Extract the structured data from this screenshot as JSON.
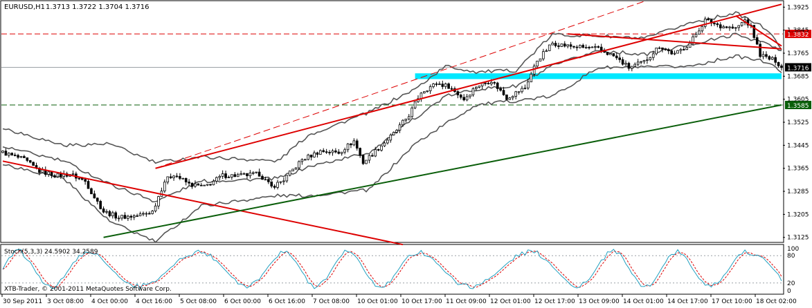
{
  "header": {
    "symbol": "EURUSD,H1",
    "ohlc": "1.3713 1.3722 1.3704 1.3716"
  },
  "indicator": {
    "label": "Stoch(5,3,3) 24.5902 34.2589",
    "levels": [
      "100",
      "80",
      "20",
      "0"
    ]
  },
  "footer": {
    "copyright": "XTB-Trader, © 2001-2011 MetaQuotes Software Corp."
  },
  "colors": {
    "background": "#ffffff",
    "candle": "#000000",
    "bands": "#555555",
    "trend_red": "#dd0000",
    "trend_green": "#0a5e0a",
    "zone": "#00e8ff",
    "stoch_main": "#20a0c0",
    "stoch_signal": "#dd0000",
    "label_red": "#dd0000",
    "label_green": "#0a5e0a",
    "label_current": "#000000"
  },
  "chart_data": {
    "type": "candlestick",
    "title": "EURUSD,H1",
    "y_ticks": [
      "1.3925",
      "1.3845",
      "1.3765",
      "1.3685",
      "1.3605",
      "1.3525",
      "1.3445",
      "1.3365",
      "1.3285",
      "1.3205",
      "1.3125"
    ],
    "ylim": [
      1.311,
      1.3945
    ],
    "x_ticks": [
      "30 Sep 2011",
      "3 Oct 08:00",
      "4 Oct 00:00",
      "4 Oct 16:00",
      "5 Oct 08:00",
      "6 Oct 00:00",
      "6 Oct 16:00",
      "7 Oct 08:00",
      "10 Oct 01:00",
      "10 Oct 17:00",
      "11 Oct 09:00",
      "12 Oct 01:00",
      "12 Oct 17:00",
      "13 Oct 09:00",
      "14 Oct 01:00",
      "14 Oct 17:00",
      "17 Oct 10:00",
      "18 Oct 02:00"
    ],
    "x_count": 256,
    "close_points": [
      [
        0,
        1.342
      ],
      [
        7,
        1.3395
      ],
      [
        12,
        1.3355
      ],
      [
        18,
        1.334
      ],
      [
        22,
        1.3345
      ],
      [
        27,
        1.332
      ],
      [
        30,
        1.3265
      ],
      [
        33,
        1.3215
      ],
      [
        38,
        1.3195
      ],
      [
        44,
        1.32
      ],
      [
        49,
        1.3215
      ],
      [
        53,
        1.332
      ],
      [
        56,
        1.3345
      ],
      [
        61,
        1.331
      ],
      [
        66,
        1.33
      ],
      [
        72,
        1.334
      ],
      [
        78,
        1.334
      ],
      [
        84,
        1.3345
      ],
      [
        88,
        1.33
      ],
      [
        92,
        1.3325
      ],
      [
        98,
        1.3395
      ],
      [
        104,
        1.3425
      ],
      [
        110,
        1.342
      ],
      [
        115,
        1.346
      ],
      [
        118,
        1.3385
      ],
      [
        123,
        1.3435
      ],
      [
        128,
        1.3485
      ],
      [
        133,
        1.355
      ],
      [
        137,
        1.363
      ],
      [
        142,
        1.366
      ],
      [
        146,
        1.365
      ],
      [
        151,
        1.3605
      ],
      [
        155,
        1.365
      ],
      [
        160,
        1.367
      ],
      [
        165,
        1.361
      ],
      [
        171,
        1.3645
      ],
      [
        175,
        1.374
      ],
      [
        180,
        1.38
      ],
      [
        185,
        1.379
      ],
      [
        190,
        1.3785
      ],
      [
        195,
        1.378
      ],
      [
        200,
        1.3755
      ],
      [
        205,
        1.3715
      ],
      [
        210,
        1.3735
      ],
      [
        215,
        1.379
      ],
      [
        220,
        1.376
      ],
      [
        225,
        1.38
      ],
      [
        230,
        1.388
      ],
      [
        235,
        1.386
      ],
      [
        240,
        1.385
      ],
      [
        243,
        1.388
      ],
      [
        245,
        1.3855
      ],
      [
        248,
        1.376
      ],
      [
        251,
        1.3745
      ],
      [
        253,
        1.374
      ],
      [
        255,
        1.3716
      ]
    ],
    "bollinger": {
      "upper": [
        [
          0,
          1.3505
        ],
        [
          20,
          1.3445
        ],
        [
          35,
          1.345
        ],
        [
          50,
          1.3385
        ],
        [
          65,
          1.3405
        ],
        [
          90,
          1.339
        ],
        [
          100,
          1.348
        ],
        [
          120,
          1.356
        ],
        [
          135,
          1.364
        ],
        [
          145,
          1.372
        ],
        [
          155,
          1.37
        ],
        [
          168,
          1.3705
        ],
        [
          180,
          1.383
        ],
        [
          195,
          1.3825
        ],
        [
          210,
          1.3815
        ],
        [
          225,
          1.387
        ],
        [
          240,
          1.3905
        ],
        [
          250,
          1.385
        ],
        [
          255,
          1.378
        ]
      ],
      "middle": [
        [
          0,
          1.344
        ],
        [
          20,
          1.339
        ],
        [
          35,
          1.331
        ],
        [
          50,
          1.325
        ],
        [
          65,
          1.332
        ],
        [
          90,
          1.333
        ],
        [
          100,
          1.337
        ],
        [
          120,
          1.342
        ],
        [
          135,
          1.354
        ],
        [
          145,
          1.3615
        ],
        [
          155,
          1.364
        ],
        [
          168,
          1.365
        ],
        [
          180,
          1.372
        ],
        [
          195,
          1.3775
        ],
        [
          210,
          1.376
        ],
        [
          225,
          1.3795
        ],
        [
          240,
          1.383
        ],
        [
          250,
          1.38
        ],
        [
          255,
          1.377
        ]
      ],
      "lower": [
        [
          0,
          1.338
        ],
        [
          20,
          1.333
        ],
        [
          35,
          1.318
        ],
        [
          50,
          1.311
        ],
        [
          65,
          1.3235
        ],
        [
          90,
          1.327
        ],
        [
          100,
          1.327
        ],
        [
          120,
          1.329
        ],
        [
          135,
          1.345
        ],
        [
          145,
          1.352
        ],
        [
          155,
          1.3585
        ],
        [
          168,
          1.36
        ],
        [
          180,
          1.3615
        ],
        [
          195,
          1.3715
        ],
        [
          210,
          1.3715
        ],
        [
          225,
          1.372
        ],
        [
          240,
          1.3755
        ],
        [
          250,
          1.3735
        ],
        [
          255,
          1.37
        ]
      ]
    },
    "trend_lines": [
      {
        "color": "trend_red",
        "style": "solid",
        "from": [
          0,
          1.339
        ],
        "to": [
          131,
          1.31
        ]
      },
      {
        "color": "trend_red",
        "style": "solid",
        "from": [
          50,
          1.3365
        ],
        "to": [
          255,
          1.3935
        ]
      },
      {
        "color": "trend_red",
        "style": "dashed",
        "from": [
          50,
          1.3365
        ],
        "to": [
          210,
          1.3945
        ]
      },
      {
        "color": "trend_green",
        "style": "solid",
        "from": [
          33,
          1.3125
        ],
        "to": [
          255,
          1.3585
        ]
      },
      {
        "color": "trend_red",
        "style": "solid",
        "from": [
          185,
          1.3832
        ],
        "to": [
          255,
          1.378
        ]
      },
      {
        "color": "trend_red",
        "style": "solid",
        "from": [
          240,
          1.3895
        ],
        "to": [
          255,
          1.379
        ]
      }
    ],
    "horizontal_lines": [
      {
        "value": 1.3832,
        "label": "1.3832",
        "color": "label_red",
        "style": "dashed"
      },
      {
        "value": 1.3585,
        "label": "1.3585",
        "color": "label_green",
        "style": "dashed"
      },
      {
        "value": 1.3716,
        "label": "1.3716",
        "color": "label_current",
        "style": "solid"
      }
    ],
    "zone": {
      "from_index": 135,
      "to_index": 255,
      "low": 1.3675,
      "high": 1.3695
    },
    "stochastic": {
      "main": 24.5902,
      "signal": 34.2589,
      "levels": [
        80,
        20
      ]
    }
  }
}
